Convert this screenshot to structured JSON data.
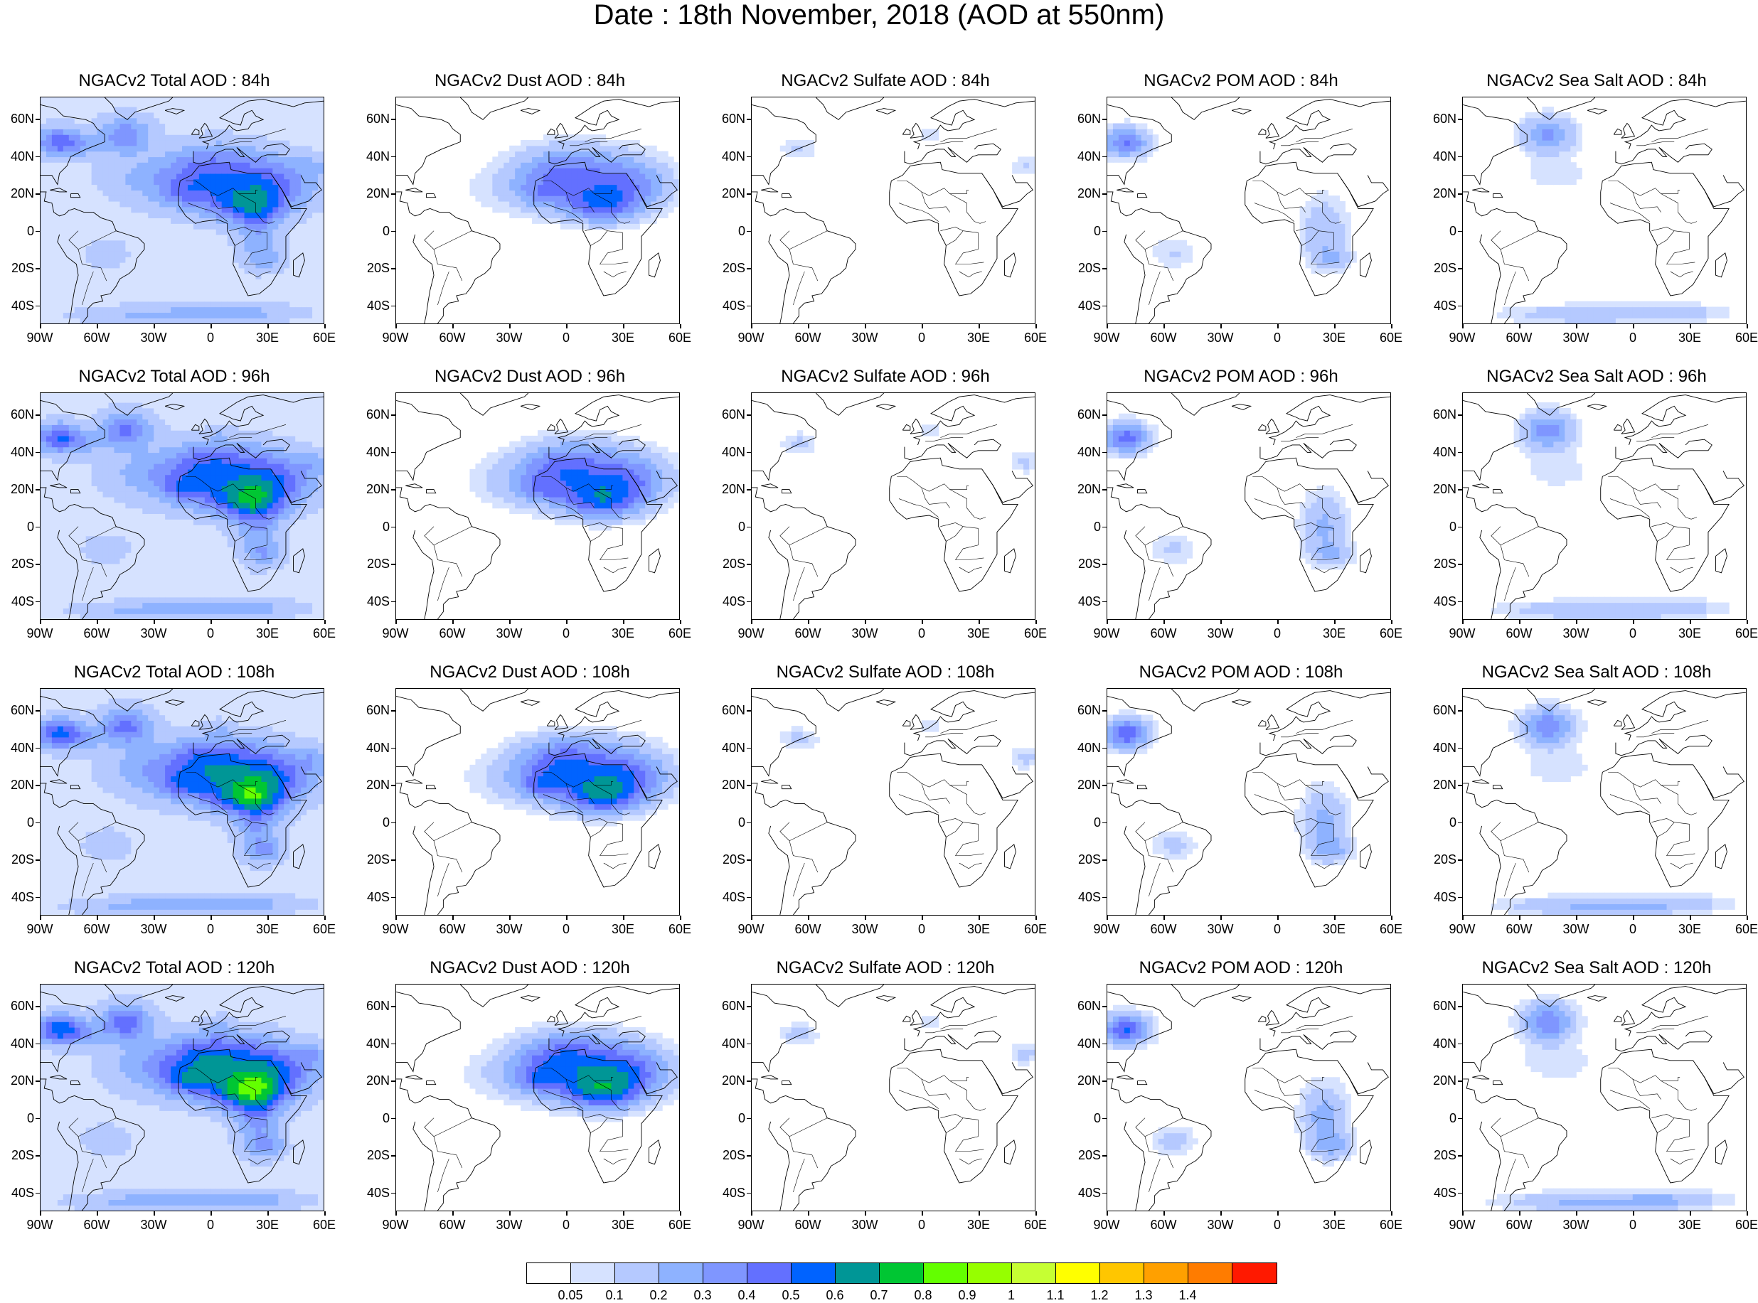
{
  "title": "Date : 18th November, 2018 (AOD at 550nm)",
  "lat_labels": [
    "60N",
    "40N",
    "20N",
    "0",
    "20S",
    "40S"
  ],
  "lon_labels": [
    "90W",
    "60W",
    "30W",
    "0",
    "30E",
    "60E"
  ],
  "panels": [
    {
      "title": "NGACv2 Total AOD : 84h",
      "field": "total",
      "hour": 84
    },
    {
      "title": "NGACv2 Dust AOD : 84h",
      "field": "dust",
      "hour": 84
    },
    {
      "title": "NGACv2 Sulfate AOD : 84h",
      "field": "sulfate",
      "hour": 84
    },
    {
      "title": "NGACv2 POM AOD : 84h",
      "field": "pom",
      "hour": 84
    },
    {
      "title": "NGACv2 Sea Salt AOD : 84h",
      "field": "seasalt",
      "hour": 84
    },
    {
      "title": "NGACv2 Total AOD : 96h",
      "field": "total",
      "hour": 96
    },
    {
      "title": "NGACv2 Dust AOD : 96h",
      "field": "dust",
      "hour": 96
    },
    {
      "title": "NGACv2 Sulfate AOD : 96h",
      "field": "sulfate",
      "hour": 96
    },
    {
      "title": "NGACv2 POM AOD : 96h",
      "field": "pom",
      "hour": 96
    },
    {
      "title": "NGACv2 Sea Salt AOD : 96h",
      "field": "seasalt",
      "hour": 96
    },
    {
      "title": "NGACv2 Total AOD : 108h",
      "field": "total",
      "hour": 108
    },
    {
      "title": "NGACv2 Dust AOD : 108h",
      "field": "dust",
      "hour": 108
    },
    {
      "title": "NGACv2 Sulfate AOD : 108h",
      "field": "sulfate",
      "hour": 108
    },
    {
      "title": "NGACv2 POM AOD : 108h",
      "field": "pom",
      "hour": 108
    },
    {
      "title": "NGACv2 Sea Salt AOD : 108h",
      "field": "seasalt",
      "hour": 108
    },
    {
      "title": "NGACv2 Total AOD : 120h",
      "field": "total",
      "hour": 120
    },
    {
      "title": "NGACv2 Dust AOD : 120h",
      "field": "dust",
      "hour": 120
    },
    {
      "title": "NGACv2 Sulfate AOD : 120h",
      "field": "sulfate",
      "hour": 120
    },
    {
      "title": "NGACv2 POM AOD : 120h",
      "field": "pom",
      "hour": 120
    },
    {
      "title": "NGACv2 Sea Salt  AOD : 120h",
      "field": "seasalt",
      "hour": 120
    }
  ],
  "colorbar": {
    "colors": [
      "#ffffff",
      "#d6e2ff",
      "#b5c9ff",
      "#8eb2ff",
      "#7f96ff",
      "#6370ff",
      "#0063ff",
      "#009696",
      "#00c633",
      "#63ff00",
      "#96ff00",
      "#c6ff33",
      "#ffff00",
      "#ffc600",
      "#ffa000",
      "#ff7c00",
      "#ff1900"
    ],
    "labels": [
      "0.05",
      "0.1",
      "0.2",
      "0.3",
      "0.4",
      "0.5",
      "0.6",
      "0.7",
      "0.8",
      "0.9",
      "1",
      "1.1",
      "1.2",
      "1.3",
      "1.4"
    ]
  }
}
